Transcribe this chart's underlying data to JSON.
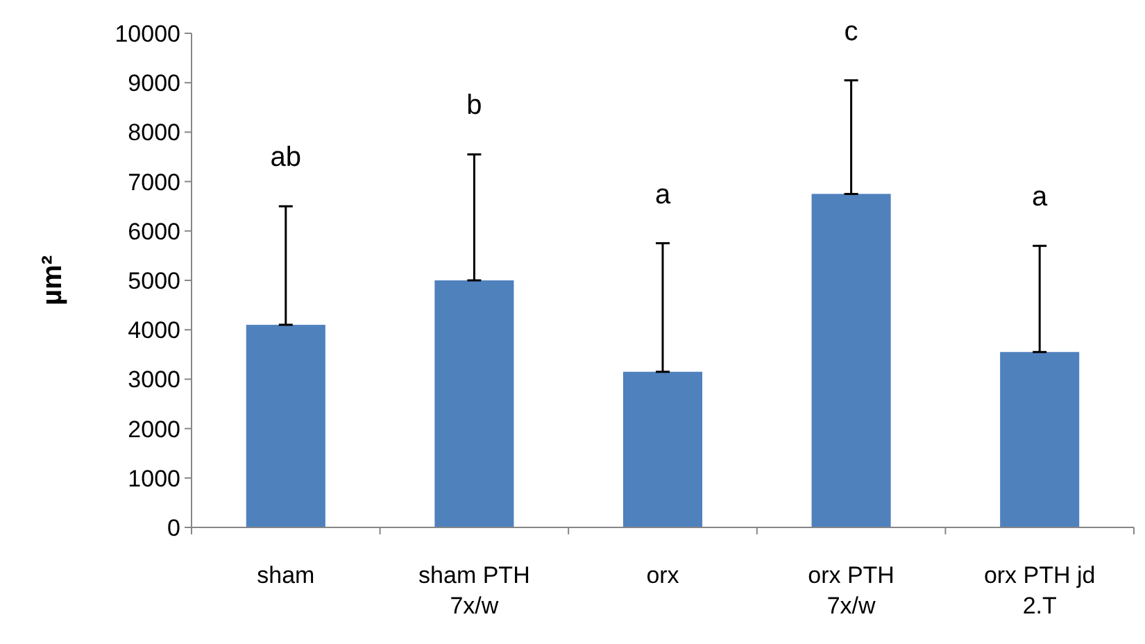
{
  "chart_data": {
    "type": "bar",
    "ylabel": "µm²",
    "categories": [
      "sham",
      "sham PTH 7x/w",
      "orx",
      "orx PTH 7x/w",
      "orx PTH jd 2.T"
    ],
    "values": [
      4100,
      5000,
      3150,
      6750,
      3550
    ],
    "color": "#4f81bd",
    "errors": [
      [
        4100,
        6500
      ],
      [
        5000,
        7550
      ],
      [
        3150,
        5750
      ],
      [
        6750,
        9050
      ],
      [
        3550,
        5700
      ]
    ],
    "ylim": [
      0,
      10000
    ],
    "yticks": [
      0,
      1000,
      2000,
      3000,
      4000,
      5000,
      6000,
      7000,
      8000,
      9000,
      10000
    ],
    "grid": false,
    "annotations": [
      {
        "text": "ab",
        "x": "sham",
        "y": 6500
      },
      {
        "text": "b",
        "x": "sham PTH 7x/w",
        "y": 7550
      },
      {
        "text": "a",
        "x": "orx",
        "y": 5750
      },
      {
        "text": "c",
        "x": "orx PTH 7x/w",
        "y": 9050
      },
      {
        "text": "a",
        "x": "orx PTH jd 2.T",
        "y": 5700
      }
    ]
  }
}
